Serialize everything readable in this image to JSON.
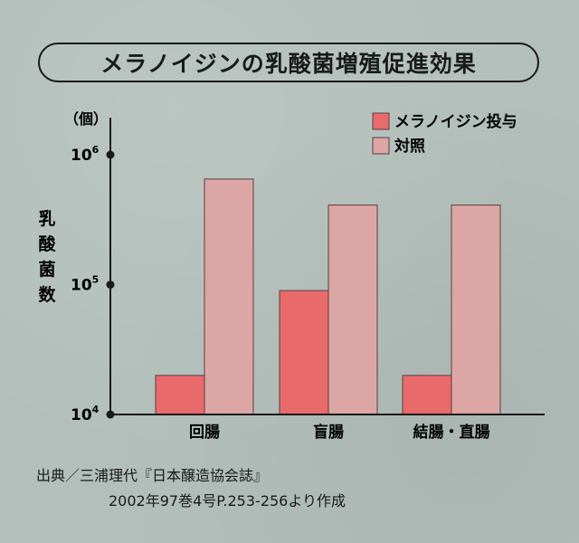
{
  "title": "メラノイジンの乳酸菌増殖促進効果",
  "chart_data": {
    "type": "bar",
    "scale": "log",
    "unit": "（個）",
    "ylabel_chars": [
      "乳",
      "酸",
      "菌",
      "数"
    ],
    "ylim": [
      10000,
      1000000
    ],
    "yticks": [
      {
        "value": 10000,
        "base": "10",
        "exp": "4"
      },
      {
        "value": 100000,
        "base": "10",
        "exp": "5"
      },
      {
        "value": 1000000,
        "base": "10",
        "exp": "6"
      }
    ],
    "categories": [
      "回腸",
      "盲腸",
      "結腸・直腸"
    ],
    "series": [
      {
        "name": "メラノイジン投与",
        "color": "#e96a6a",
        "values": [
          20000,
          90000,
          20000
        ]
      },
      {
        "name": "対照",
        "color": "#dba6a3",
        "values": [
          650000,
          410000,
          410000
        ]
      }
    ],
    "grid": false,
    "legend": "top-right"
  },
  "source": {
    "line1": "出典／三浦理代『日本醸造協会誌』",
    "line2": "2002年97巻4号P.253-256より作成"
  }
}
